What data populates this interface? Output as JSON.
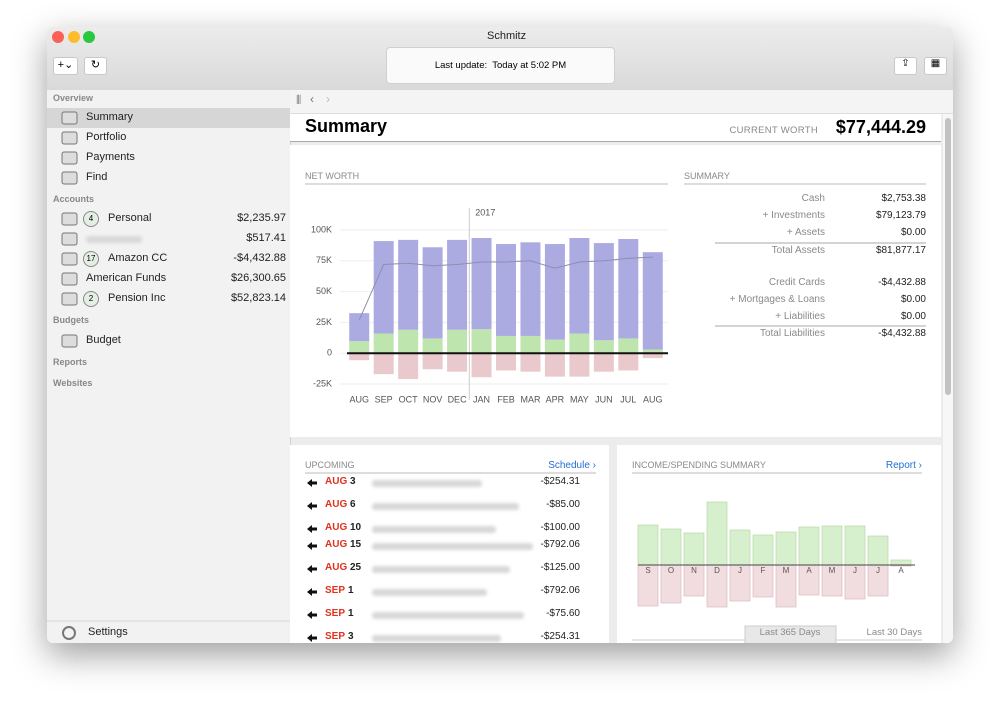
{
  "window": {
    "title": "Schmitz",
    "last_update_label": "Last update:",
    "last_update": "Today at 5:02 PM"
  },
  "sidebar": {
    "overview": {
      "heading": "Overview",
      "items": [
        "Summary",
        "Portfolio",
        "Payments",
        "Find"
      ]
    },
    "accounts": {
      "heading": "Accounts",
      "items": [
        {
          "badge": "4",
          "name": "Personal",
          "balance": "$2,235.97"
        },
        {
          "balance": "$517.41"
        },
        {
          "badge": "17",
          "name": "Amazon CC",
          "balance": "-$4,432.88"
        },
        {
          "name": "American Funds",
          "balance": "$26,300.65"
        },
        {
          "badge": "2",
          "name": "Pension Inc",
          "balance": "$52,823.14"
        }
      ]
    },
    "budgets": {
      "heading": "Budgets",
      "items": [
        "Budget"
      ]
    },
    "reports": {
      "heading": "Reports"
    },
    "websites": {
      "heading": "Websites"
    },
    "settings": "Settings"
  },
  "summary_header": {
    "title": "Summary",
    "current_worth_label": "CURRENT WORTH",
    "current_worth": "$77,444.29"
  },
  "summary_table": {
    "heading": "SUMMARY",
    "rows": [
      [
        "Cash",
        "$2,753.38"
      ],
      [
        "+ Investments",
        "$79,123.79"
      ],
      [
        "+ Assets",
        "$0.00"
      ],
      [
        "Total Assets",
        "$81,877.17"
      ],
      [
        "Credit Cards",
        "-$4,432.88"
      ],
      [
        "+ Mortgages & Loans",
        "$0.00"
      ],
      [
        "+ Liabilities",
        "$0.00"
      ],
      [
        "Total Liabilities",
        "-$4,432.88"
      ]
    ]
  },
  "upcoming": {
    "heading": "UPCOMING",
    "link": "Schedule ›",
    "items": [
      {
        "month": "AUG",
        "day": "3",
        "amount": "-$254.31"
      },
      {
        "month": "AUG",
        "day": "6",
        "amount": "-$85.00"
      },
      {
        "month": "AUG",
        "day": "10",
        "amount": "-$100.00"
      },
      {
        "month": "AUG",
        "day": "15",
        "amount": "-$792.06"
      },
      {
        "month": "AUG",
        "day": "25",
        "amount": "-$125.00"
      },
      {
        "month": "SEP",
        "day": "1",
        "amount": "-$792.06"
      },
      {
        "month": "SEP",
        "day": "1",
        "amount": "-$75.60"
      },
      {
        "month": "SEP",
        "day": "3",
        "amount": "-$254.31"
      }
    ]
  },
  "income_panel": {
    "link": "Report ›",
    "tabs": [
      "Last 365 Days",
      "Last 30 Days"
    ]
  },
  "chart_data": [
    {
      "type": "combo",
      "title": "NET WORTH",
      "categories": [
        "AUG",
        "SEP",
        "OCT",
        "NOV",
        "DEC",
        "JAN",
        "FEB",
        "MAR",
        "APR",
        "MAY",
        "JUN",
        "JUL",
        "AUG"
      ],
      "series": [
        {
          "type": "bar",
          "color": "#bde5ad",
          "values": [
            9800,
            16000,
            19000,
            12000,
            19000,
            19500,
            14000,
            14000,
            11000,
            16000,
            10500,
            12000,
            3000
          ]
        },
        {
          "type": "bar",
          "color": "#ababe2",
          "values": [
            22700,
            75000,
            73000,
            74000,
            73000,
            74000,
            74600,
            76000,
            77600,
            77500,
            78900,
            80700,
            79000
          ]
        },
        {
          "type": "bar",
          "color": "#e9c9cb",
          "values": [
            -5700,
            -17000,
            -21000,
            -13000,
            -15000,
            -19500,
            -14000,
            -15000,
            -19000,
            -19000,
            -15000,
            -14000,
            -4000
          ]
        },
        {
          "type": "line",
          "color": "#8e8eae",
          "values": [
            27000,
            72000,
            73000,
            71000,
            72000,
            74000,
            74000,
            75000,
            69000,
            74000,
            75000,
            77000,
            78000
          ]
        }
      ],
      "ylim": [
        -25000,
        100000
      ],
      "yticks": [
        {
          "value": -25000,
          "label": "-25K"
        },
        0,
        {
          "value": 25000,
          "label": "25K"
        },
        {
          "value": 50000,
          "label": "50K"
        },
        {
          "value": 75000,
          "label": "75K"
        },
        {
          "value": 100000,
          "label": "100K"
        }
      ],
      "grid": true,
      "annotation": {
        "text": "2017",
        "before": "JAN"
      }
    },
    {
      "type": "bar",
      "title": "INCOME/SPENDING SUMMARY",
      "categories": [
        "S",
        "O",
        "N",
        "D",
        "J",
        "F",
        "M",
        "A",
        "M",
        "J",
        "J",
        "A"
      ],
      "series": [
        {
          "color": "#d6efcc",
          "values": [
            40,
            36,
            32,
            63,
            35,
            30,
            33,
            38,
            39,
            39,
            29,
            5
          ]
        },
        {
          "color": "#f1dde0",
          "values": [
            -41,
            -38,
            -31,
            -42,
            -36,
            -32,
            -42,
            -30,
            -31,
            -34,
            -31,
            -1
          ]
        }
      ]
    }
  ]
}
